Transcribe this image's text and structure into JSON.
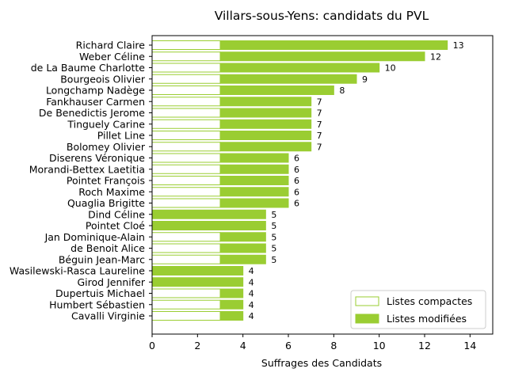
{
  "chart_data": {
    "type": "bar",
    "orientation": "horizontal",
    "stacked": true,
    "title": "Villars-sous-Yens: candidats du PVL",
    "xlabel": "Suffrages des Candidats",
    "ylabel": "",
    "xlim": [
      0,
      15
    ],
    "xticks": [
      "0",
      "2",
      "4",
      "6",
      "8",
      "10",
      "12",
      "14"
    ],
    "grid": false,
    "legend_position": "lower-right",
    "categories": [
      "Richard Claire",
      "Weber Céline",
      "de La Baume Charlotte",
      "Bourgeois Olivier",
      "Longchamp Nadège",
      "Fankhauser Carmen",
      "De Benedictis Jerome",
      "Tinguely Carine",
      "Pillet Line",
      "Bolomey Olivier",
      "Diserens Véronique",
      "Morandi-Bettex Laetitia",
      "Pointet François",
      "Roch Maxime",
      "Quaglia Brigitte",
      "Dind Céline",
      "Pointet Cloé",
      "Jan Dominique-Alain",
      "de Benoit Alice",
      "Béguin Jean-Marc",
      "Wasilewski-Rasca Laureline",
      "Girod Jennifer",
      "Dupertuis Michael",
      "Humbert Sébastien",
      "Cavalli Virginie"
    ],
    "series": [
      {
        "name": "Listes compactes",
        "style": "outline",
        "color": "#9acd32",
        "values": [
          3,
          3,
          3,
          3,
          3,
          3,
          3,
          3,
          3,
          3,
          3,
          3,
          3,
          3,
          3,
          0,
          0,
          3,
          3,
          3,
          0,
          0,
          3,
          3,
          3
        ]
      },
      {
        "name": "Listes modifiées",
        "style": "filled",
        "color": "#9acd32",
        "values": [
          10,
          9,
          7,
          6,
          5,
          4,
          4,
          4,
          4,
          4,
          3,
          3,
          3,
          3,
          3,
          5,
          5,
          2,
          2,
          2,
          4,
          4,
          1,
          1,
          1
        ]
      }
    ],
    "totals": [
      13,
      12,
      10,
      9,
      8,
      7,
      7,
      7,
      7,
      7,
      6,
      6,
      6,
      6,
      6,
      5,
      5,
      5,
      5,
      5,
      4,
      4,
      4,
      4,
      4
    ]
  }
}
